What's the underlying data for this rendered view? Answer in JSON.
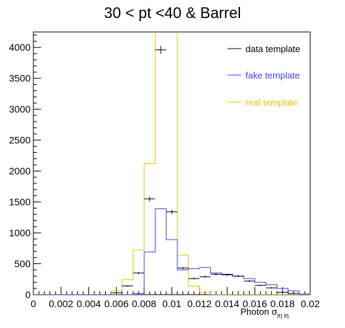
{
  "chart_data": {
    "type": "histogram",
    "title": "30 < pt <40 & Barrel",
    "xlabel": "Photon σ",
    "xlabel_subscript": "iη iη",
    "xlim": [
      0,
      0.02
    ],
    "ylim": [
      0,
      4250
    ],
    "x_ticks": [
      "0",
      "0.002",
      "0.004",
      "0.006",
      "0.008",
      "0.01",
      "0.012",
      "0.014",
      "0.016",
      "0.018",
      "0.02"
    ],
    "y_ticks": [
      "0",
      "500",
      "1000",
      "1500",
      "2000",
      "2500",
      "3000",
      "3500",
      "4000"
    ],
    "bin_width": 0.0008,
    "bin_edges_start": 0,
    "legend_position": "top-right",
    "series": [
      {
        "name": "data template",
        "style": "points-with-errors",
        "color": "#000000",
        "values": [
          0,
          0,
          0,
          0,
          0,
          0,
          0,
          30,
          140,
          350,
          1550,
          3960,
          1340,
          430,
          260,
          290,
          330,
          320,
          300,
          220,
          150,
          110,
          40,
          20,
          0
        ]
      },
      {
        "name": "fake template",
        "style": "step",
        "color": "#4040ff",
        "values": [
          0,
          0,
          0,
          0,
          0,
          0,
          0,
          0,
          0,
          20,
          690,
          1390,
          890,
          400,
          420,
          440,
          350,
          330,
          300,
          260,
          200,
          160,
          100,
          60,
          10
        ]
      },
      {
        "name": "real template",
        "style": "step",
        "color": "#e8c200",
        "values": [
          0,
          0,
          0,
          0,
          0,
          0,
          0,
          60,
          240,
          720,
          2120,
          4500,
          4500,
          640,
          140,
          40,
          0,
          0,
          0,
          0,
          0,
          0,
          0,
          0,
          0
        ]
      }
    ]
  }
}
